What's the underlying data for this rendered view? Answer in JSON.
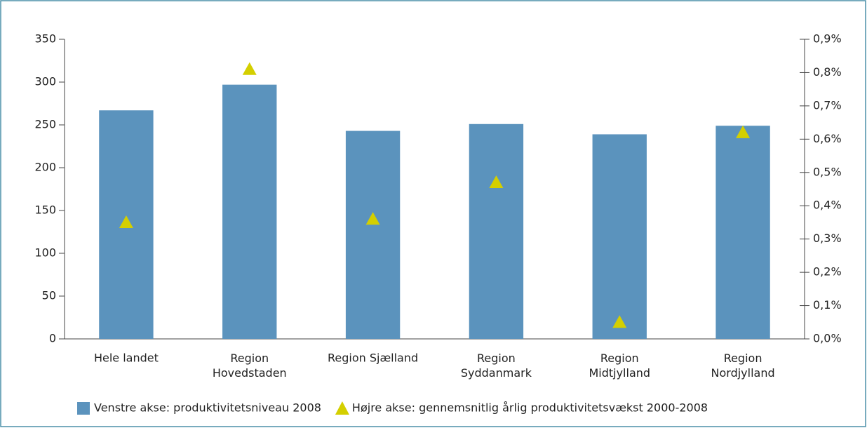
{
  "chart_data": {
    "type": "bar",
    "categories": [
      "Hele landet",
      "Region Hovedstaden",
      "Region Sjælland",
      "Region Syddanmark",
      "Region Midtjylland",
      "Region Nordjylland"
    ],
    "series": [
      {
        "name": "Venstre akse: produktivitetsniveau 2008",
        "color": "#5b93bd",
        "values": [
          267,
          297,
          243,
          251,
          239,
          249
        ]
      },
      {
        "name": "Højre akse: gennemsnitlig årlig produktivitetsvækst 2000-2008",
        "color": "#d4cf00",
        "marker": "triangle",
        "axis": "y2",
        "values": [
          0.35,
          0.81,
          0.36,
          0.47,
          0.05,
          0.62
        ]
      }
    ],
    "ylim": [
      0,
      350
    ],
    "yticks": [
      0,
      50,
      100,
      150,
      200,
      250,
      300,
      350
    ],
    "y2lim": [
      0,
      0.9
    ],
    "y2ticks": [
      {
        "value": 0,
        "label": "0,0%"
      },
      {
        "value": 0.1,
        "label": "0,1%"
      },
      {
        "value": 0.2,
        "label": "0,2%"
      },
      {
        "value": 0.3,
        "label": "0,3%"
      },
      {
        "value": 0.4,
        "label": "0,4%"
      },
      {
        "value": 0.5,
        "label": "0,5%"
      },
      {
        "value": 0.6,
        "label": "0,6%"
      },
      {
        "value": 0.7,
        "label": "0,7%"
      },
      {
        "value": 0.8,
        "label": "0,8%"
      },
      {
        "value": 0.9,
        "label": "0,9%"
      }
    ],
    "grid": false
  }
}
